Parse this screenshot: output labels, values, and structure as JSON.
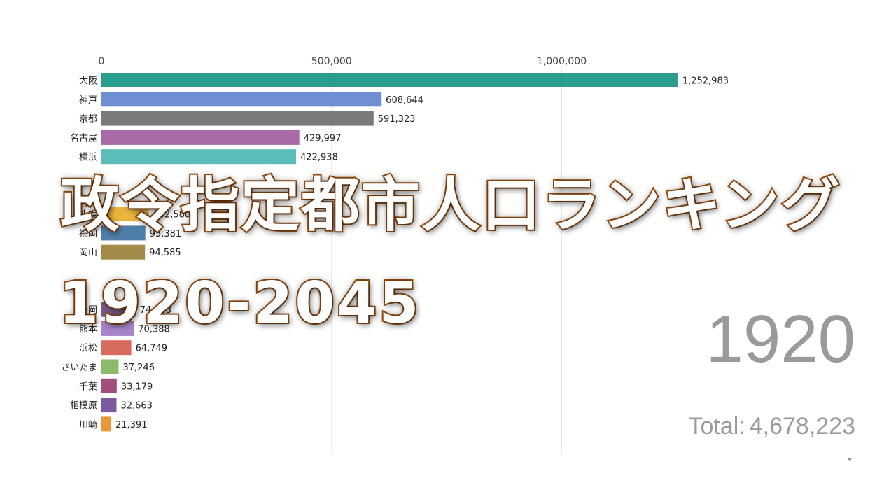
{
  "chart_data": {
    "type": "bar",
    "orientation": "horizontal",
    "categories": [
      "大阪",
      "神戸",
      "京都",
      "名古屋",
      "横浜",
      "",
      "",
      "札幌",
      "福岡",
      "岡山",
      "",
      "",
      "静岡",
      "熊本",
      "浜松",
      "さいたま",
      "千葉",
      "相模原",
      "川崎"
    ],
    "values": [
      1252983,
      608644,
      591323,
      429997,
      422938,
      null,
      null,
      102580,
      95381,
      94585,
      null,
      null,
      74093,
      70388,
      64749,
      37246,
      33179,
      32663,
      21391
    ],
    "value_labels": [
      "1,252,983",
      "608,644",
      "591,323",
      "429,997",
      "422,938",
      "",
      "",
      "102,580",
      "95,381",
      "94,585",
      "",
      "",
      "74,093",
      "70,388",
      "64,749",
      "37,246",
      "33,179",
      "32,663",
      "21,391"
    ],
    "colors": [
      "#2a9d8f",
      "#6f8fd4",
      "#7a7a7a",
      "#a96aa8",
      "#5abdb8",
      "#2a9fc2",
      "#b96fb0",
      "#e8b53c",
      "#4f7ea8",
      "#a48a48",
      "#5a9a5a",
      "#4a9a6a",
      "#7a5a8a",
      "#a585c8",
      "#d96a5e",
      "#8cba6a",
      "#a04e7a",
      "#7a5aa0",
      "#e89a3a"
    ],
    "xlim": [
      0,
      1300000
    ],
    "x_ticks": [
      0,
      500000,
      1000000
    ],
    "x_tick_labels": [
      "0",
      "500,000",
      "1,000,000"
    ],
    "grid": true,
    "xlabel": "",
    "ylabel": ""
  },
  "year": "1920",
  "total_label": "Total:",
  "total_value": "4,678,223",
  "overlay": {
    "title": "政令指定都市人口ランキング",
    "years": "1920-2045"
  }
}
